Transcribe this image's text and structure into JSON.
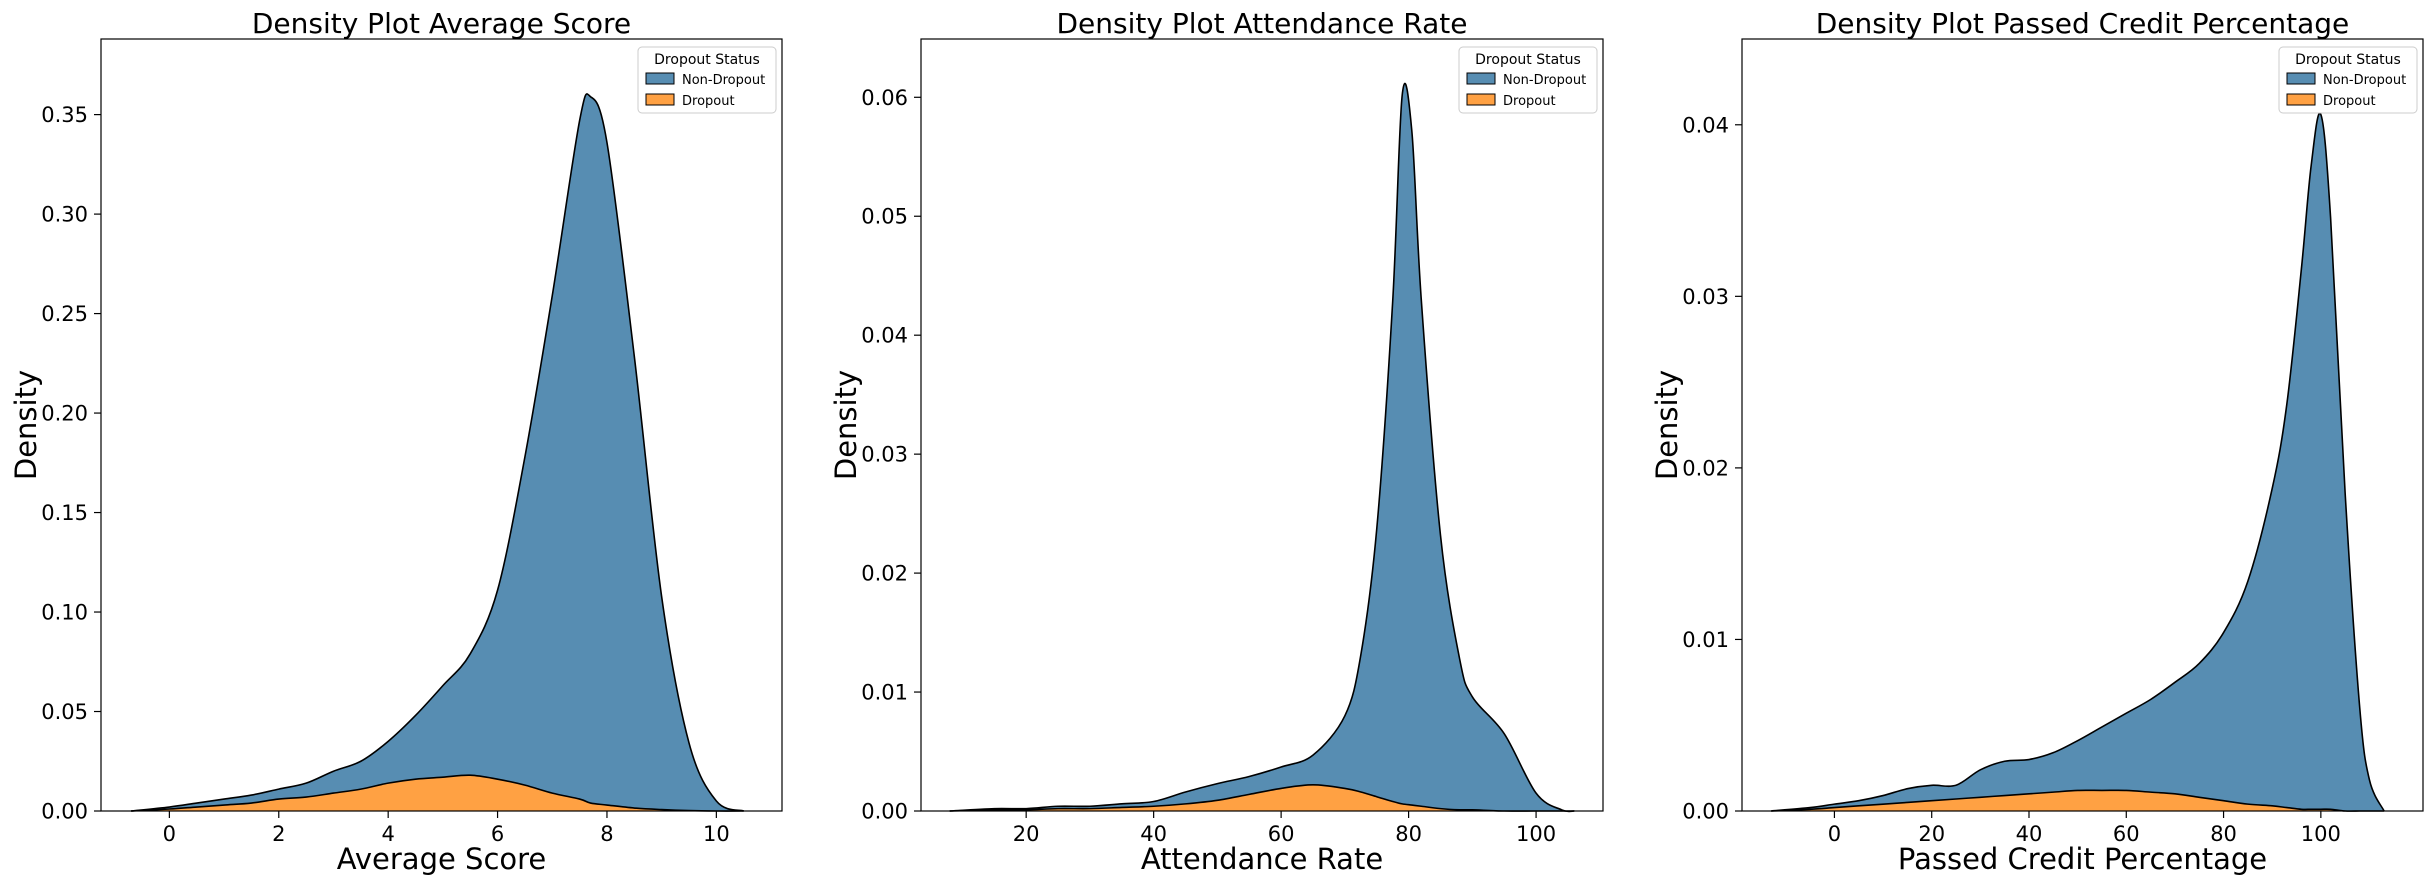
{
  "colors": {
    "non_dropout": "#3274A1",
    "dropout": "#FF8C1A"
  },
  "chart_data": [
    {
      "type": "area",
      "stacked": true,
      "title": "Density Plot Average Score",
      "xlabel": "Average Score",
      "ylabel": "Density",
      "xlim": [
        -1.25,
        11.2
      ],
      "ylim": [
        0,
        0.388
      ],
      "xticks": [
        0,
        2,
        4,
        6,
        8,
        10
      ],
      "xtick_labels": [
        "0",
        "2",
        "4",
        "6",
        "8",
        "10"
      ],
      "yticks": [
        0,
        0.05,
        0.1,
        0.15,
        0.2,
        0.25,
        0.3,
        0.35
      ],
      "ytick_labels": [
        "0.00",
        "0.05",
        "0.10",
        "0.15",
        "0.20",
        "0.25",
        "0.30",
        "0.35"
      ],
      "legend": {
        "title": "Dropout Status",
        "position": "top-right",
        "entries": [
          "Non-Dropout",
          "Dropout"
        ]
      },
      "x": [
        -0.7,
        0,
        0.5,
        1,
        1.5,
        2,
        2.5,
        3,
        3.5,
        4,
        4.5,
        5,
        5.5,
        6,
        6.5,
        7,
        7.5,
        7.7,
        8,
        8.5,
        9,
        9.5,
        10,
        10.5
      ],
      "series": [
        {
          "name": "Non-Dropout",
          "values": [
            0,
            0.001,
            0.002,
            0.003,
            0.004,
            0.005,
            0.007,
            0.011,
            0.014,
            0.021,
            0.032,
            0.046,
            0.061,
            0.095,
            0.165,
            0.25,
            0.341,
            0.355,
            0.333,
            0.227,
            0.107,
            0.034,
            0.005,
            0
          ]
        },
        {
          "name": "Dropout",
          "values": [
            0,
            0.001,
            0.002,
            0.003,
            0.004,
            0.006,
            0.007,
            0.009,
            0.011,
            0.014,
            0.016,
            0.017,
            0.018,
            0.016,
            0.013,
            0.009,
            0.006,
            0.004,
            0.003,
            0.0015,
            0.0007,
            0.0002,
            0,
            0
          ]
        }
      ]
    },
    {
      "type": "area",
      "stacked": true,
      "title": "Density Plot Attendance Rate",
      "xlabel": "Attendance Rate",
      "ylabel": "Density",
      "xlim": [
        3.5,
        110.5
      ],
      "ylim": [
        0,
        0.0649
      ],
      "xticks": [
        20,
        40,
        60,
        80,
        100
      ],
      "xtick_labels": [
        "20",
        "40",
        "60",
        "80",
        "100"
      ],
      "yticks": [
        0,
        0.01,
        0.02,
        0.03,
        0.04,
        0.05,
        0.06
      ],
      "ytick_labels": [
        "0.00",
        "0.01",
        "0.02",
        "0.03",
        "0.04",
        "0.05",
        "0.06"
      ],
      "legend": {
        "title": "Dropout Status",
        "position": "top-right",
        "entries": [
          "Non-Dropout",
          "Dropout"
        ]
      },
      "x": [
        8,
        15,
        20,
        25,
        30,
        35,
        40,
        45,
        50,
        55,
        60,
        65,
        70,
        72.5,
        75,
        77.5,
        79,
        80.5,
        82,
        85,
        88,
        90,
        95,
        100,
        104,
        106
      ],
      "series": [
        {
          "name": "Non-Dropout",
          "values": [
            0,
            0.0001,
            0.0001,
            0.0002,
            0.0002,
            0.0003,
            0.0004,
            0.001,
            0.0014,
            0.0015,
            0.0018,
            0.0025,
            0.0061,
            0.0115,
            0.0225,
            0.042,
            0.0596,
            0.0567,
            0.0425,
            0.023,
            0.0127,
            0.0095,
            0.0065,
            0.0015,
            0.0001,
            0
          ]
        },
        {
          "name": "Dropout",
          "values": [
            0,
            0.0001,
            0.0001,
            0.0002,
            0.0002,
            0.0003,
            0.0004,
            0.0006,
            0.0009,
            0.0014,
            0.0019,
            0.0022,
            0.0019,
            0.0016,
            0.0012,
            0.0008,
            0.0006,
            0.0005,
            0.0004,
            0.0002,
            0.0001,
            0.0001,
            0,
            0,
            0,
            0
          ]
        }
      ]
    },
    {
      "type": "area",
      "stacked": true,
      "title": "Density Plot Passed Credit Percentage",
      "xlabel": "Passed Credit Percentage",
      "ylabel": "Density",
      "xlim": [
        -19,
        121
      ],
      "ylim": [
        0,
        0.045
      ],
      "xticks": [
        0,
        20,
        40,
        60,
        80,
        100
      ],
      "xtick_labels": [
        "0",
        "20",
        "40",
        "60",
        "80",
        "100"
      ],
      "yticks": [
        0,
        0.01,
        0.02,
        0.03,
        0.04
      ],
      "ytick_labels": [
        "0.00",
        "0.01",
        "0.02",
        "0.03",
        "0.04"
      ],
      "legend": {
        "title": "Dropout Status",
        "position": "top-right",
        "entries": [
          "Non-Dropout",
          "Dropout"
        ]
      },
      "x": [
        -13,
        -5,
        0,
        5,
        10,
        15,
        20,
        25,
        30,
        35,
        40,
        45,
        50,
        55,
        60,
        65,
        70,
        75,
        80,
        85,
        90,
        93,
        96,
        98,
        100,
        102,
        105,
        108,
        110,
        113
      ],
      "series": [
        {
          "name": "Non-Dropout",
          "values": [
            0,
            0.0001,
            0.0002,
            0.0003,
            0.0005,
            0.0008,
            0.0009,
            0.0008,
            0.0016,
            0.002,
            0.002,
            0.0023,
            0.0029,
            0.0037,
            0.0045,
            0.0054,
            0.0065,
            0.0078,
            0.0098,
            0.013,
            0.0185,
            0.0235,
            0.0315,
            0.0375,
            0.0405,
            0.0345,
            0.0185,
            0.006,
            0.0018,
            0
          ]
        },
        {
          "name": "Dropout",
          "values": [
            0,
            0.0001,
            0.0002,
            0.0003,
            0.0004,
            0.0005,
            0.0006,
            0.0007,
            0.0008,
            0.0009,
            0.001,
            0.0011,
            0.0012,
            0.0012,
            0.0012,
            0.0011,
            0.001,
            0.0008,
            0.0006,
            0.0004,
            0.0003,
            0.0002,
            0.0001,
            0.0001,
            0.0001,
            0.0001,
            0,
            0,
            0,
            0
          ]
        }
      ]
    }
  ]
}
